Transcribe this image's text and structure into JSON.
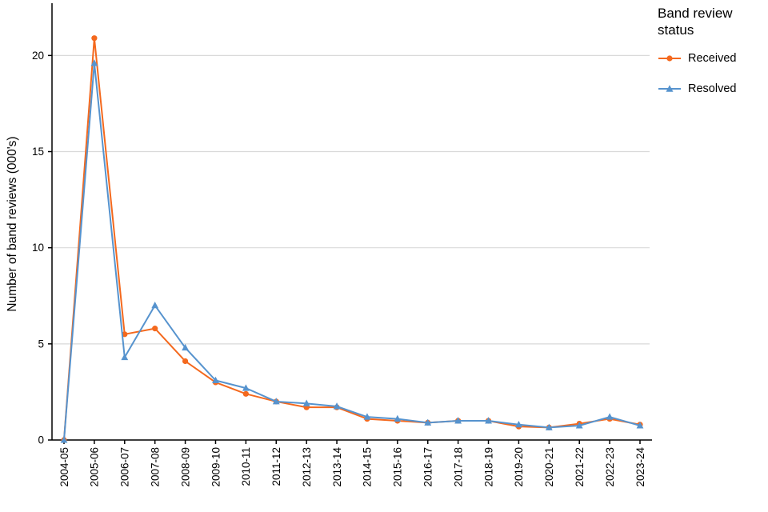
{
  "chart_data": {
    "type": "line",
    "title": "",
    "legend_title": "Band review status",
    "legend_position": "top-right",
    "ylabel": "Number of band reviews (000's)",
    "xlabel": "",
    "categories": [
      "2004-05",
      "2005-06",
      "2006-07",
      "2007-08",
      "2008-09",
      "2009-10",
      "2010-11",
      "2011-12",
      "2012-13",
      "2013-14",
      "2014-15",
      "2015-16",
      "2016-17",
      "2017-18",
      "2018-19",
      "2019-20",
      "2020-21",
      "2021-22",
      "2022-23",
      "2023-24"
    ],
    "yticks": [
      0,
      5,
      10,
      15,
      20
    ],
    "ylim": [
      0,
      21
    ],
    "grid": "horizontal",
    "series": [
      {
        "name": "Received",
        "color": "#f4691e",
        "marker": "circle",
        "values": [
          0,
          20.9,
          5.5,
          5.8,
          4.1,
          3.0,
          2.4,
          2.0,
          1.7,
          1.7,
          1.1,
          1.0,
          0.9,
          1.0,
          1.0,
          0.7,
          0.65,
          0.85,
          1.1,
          0.8
        ]
      },
      {
        "name": "Resolved",
        "color": "#5693ce",
        "marker": "triangle",
        "values": [
          0,
          19.6,
          4.3,
          7.0,
          4.8,
          3.1,
          2.7,
          2.0,
          1.9,
          1.75,
          1.2,
          1.1,
          0.9,
          1.0,
          1.0,
          0.8,
          0.65,
          0.75,
          1.2,
          0.75
        ]
      }
    ],
    "colors": {
      "axis": "#000000",
      "gridline": "#d9d9d9",
      "tick_text": "#000000",
      "background": "#ffffff"
    }
  }
}
